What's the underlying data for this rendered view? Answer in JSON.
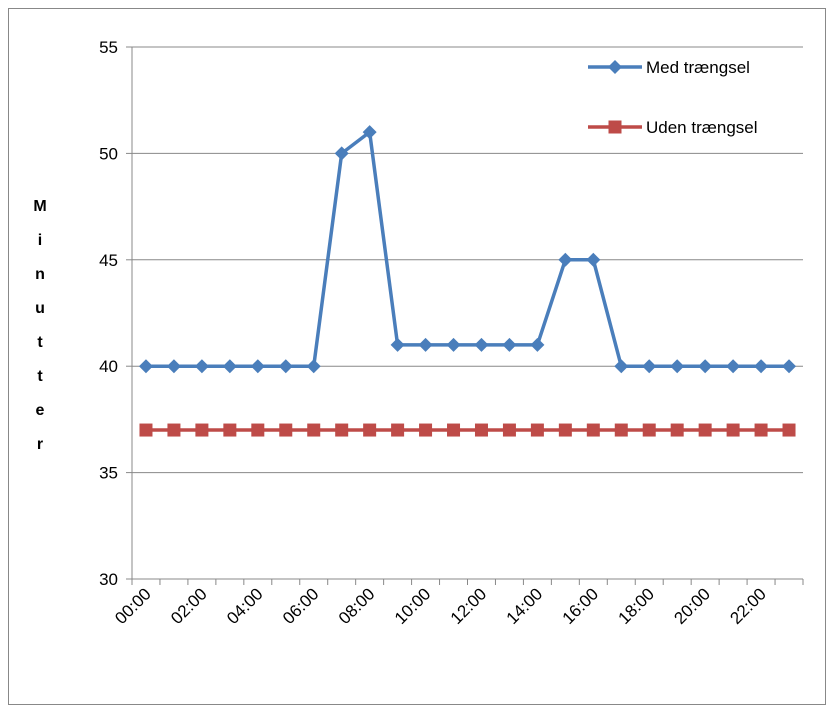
{
  "chart_data": {
    "type": "line",
    "y_label": "Minutter",
    "categories": [
      "00:00",
      null,
      "02:00",
      null,
      "04:00",
      null,
      "06:00",
      null,
      "08:00",
      null,
      "10:00",
      null,
      "12:00",
      null,
      "14:00",
      null,
      "16:00",
      null,
      "18:00",
      null,
      "20:00",
      null,
      "22:00",
      null
    ],
    "series": [
      {
        "name": "Med trængsel",
        "color": "#4a7ebb",
        "marker": "diamond",
        "values": [
          40,
          40,
          40,
          40,
          40,
          40,
          40,
          50,
          51,
          41,
          41,
          41,
          41,
          41,
          41,
          45,
          45,
          40,
          40,
          40,
          40,
          40,
          40,
          40
        ]
      },
      {
        "name": "Uden trængsel",
        "color": "#be4b48",
        "marker": "square",
        "values": [
          37,
          37,
          37,
          37,
          37,
          37,
          37,
          37,
          37,
          37,
          37,
          37,
          37,
          37,
          37,
          37,
          37,
          37,
          37,
          37,
          37,
          37,
          37,
          37
        ]
      }
    ],
    "ylim": [
      30,
      55
    ],
    "yticks": [
      30,
      35,
      40,
      45,
      50,
      55
    ],
    "grid": true,
    "legend": "upper right"
  }
}
